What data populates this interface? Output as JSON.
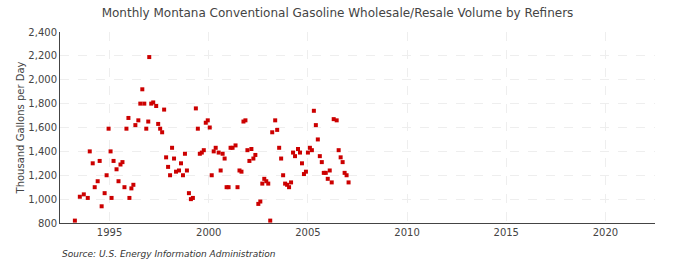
{
  "chart_data": {
    "type": "scatter",
    "title": "Monthly Montana Conventional Gasoline Wholesale/Resale Volume by Refiners",
    "y_label": "Thousand Gallons per Day",
    "source": "Source: U.S. Energy Information Administration",
    "color": "#cc0000",
    "marker": "square",
    "grid": true,
    "xlim": [
      1992.5,
      2022.5
    ],
    "xticks": [
      1995,
      2000,
      2005,
      2010,
      2015,
      2020
    ],
    "ylim": [
      800,
      2400
    ],
    "yticks": [
      800,
      {
        "value": 1000,
        "label": "1,000"
      },
      {
        "value": 1200,
        "label": "1,200"
      },
      {
        "value": 1400,
        "label": "1,400"
      },
      {
        "value": 1600,
        "label": "1,600"
      },
      {
        "value": 1800,
        "label": "1,800"
      },
      {
        "value": 2000,
        "label": "2,000"
      },
      {
        "value": 2200,
        "label": "2,200"
      },
      {
        "value": 2400,
        "label": "2,400"
      }
    ],
    "x": [
      1993.25,
      1993.5,
      1993.7,
      1993.9,
      1994.0,
      1994.15,
      1994.25,
      1994.4,
      1994.5,
      1994.6,
      1994.75,
      1994.85,
      1994.95,
      1995.05,
      1995.1,
      1995.2,
      1995.35,
      1995.45,
      1995.55,
      1995.65,
      1995.75,
      1995.85,
      1995.95,
      1996.0,
      1996.1,
      1996.2,
      1996.3,
      1996.45,
      1996.55,
      1996.65,
      1996.75,
      1996.85,
      1996.95,
      1997.0,
      1997.1,
      1997.2,
      1997.35,
      1997.45,
      1997.55,
      1997.65,
      1997.75,
      1997.85,
      1997.95,
      1998.05,
      1998.15,
      1998.25,
      1998.35,
      1998.5,
      1998.6,
      1998.7,
      1998.8,
      1998.9,
      1999.0,
      1999.1,
      1999.2,
      1999.35,
      1999.45,
      1999.55,
      1999.65,
      1999.75,
      1999.85,
      1999.95,
      2000.05,
      2000.15,
      2000.25,
      2000.35,
      2000.5,
      2000.6,
      2000.7,
      2000.8,
      2000.9,
      2001.0,
      2001.1,
      2001.2,
      2001.35,
      2001.45,
      2001.55,
      2001.65,
      2001.75,
      2001.85,
      2001.95,
      2002.05,
      2002.15,
      2002.25,
      2002.35,
      2002.5,
      2002.6,
      2002.7,
      2002.8,
      2002.9,
      2003.0,
      2003.1,
      2003.2,
      2003.35,
      2003.45,
      2003.55,
      2003.65,
      2003.75,
      2003.85,
      2003.95,
      2004.05,
      2004.15,
      2004.25,
      2004.35,
      2004.5,
      2004.6,
      2004.7,
      2004.8,
      2004.9,
      2005.0,
      2005.1,
      2005.2,
      2005.3,
      2005.4,
      2005.5,
      2005.6,
      2005.7,
      2005.8,
      2005.9,
      2006.0,
      2006.1,
      2006.2,
      2006.3,
      2006.45,
      2006.55,
      2006.65,
      2006.75,
      2006.85,
      2006.95,
      2007.05
    ],
    "values": [
      820,
      1020,
      1040,
      1010,
      1400,
      1300,
      1100,
      1150,
      1320,
      940,
      1050,
      1200,
      1590,
      1400,
      1010,
      1320,
      1250,
      1150,
      1290,
      1310,
      1100,
      1590,
      1680,
      1010,
      1090,
      1120,
      1620,
      1660,
      1800,
      1920,
      1800,
      1590,
      1650,
      2190,
      1800,
      1810,
      1780,
      1630,
      1590,
      1560,
      1750,
      1350,
      1270,
      1200,
      1430,
      1340,
      1230,
      1240,
      1300,
      1200,
      1380,
      1240,
      1050,
      1000,
      1010,
      1760,
      1590,
      1380,
      1390,
      1410,
      1640,
      1660,
      1600,
      1200,
      1400,
      1430,
      1390,
      1240,
      1380,
      1340,
      1100,
      1100,
      1430,
      1430,
      1450,
      1100,
      1240,
      1230,
      1650,
      1660,
      1410,
      1320,
      1420,
      1340,
      1370,
      960,
      980,
      1130,
      1170,
      1150,
      1130,
      820,
      1560,
      1660,
      1580,
      1430,
      1340,
      1200,
      1130,
      1120,
      1100,
      1140,
      1390,
      1360,
      1420,
      1390,
      1300,
      1210,
      1230,
      1390,
      1430,
      1410,
      1740,
      1620,
      1500,
      1360,
      1310,
      1220,
      1220,
      1170,
      1240,
      1140,
      1670,
      1660,
      1410,
      1350,
      1310,
      1220,
      1200,
      1140
    ]
  }
}
